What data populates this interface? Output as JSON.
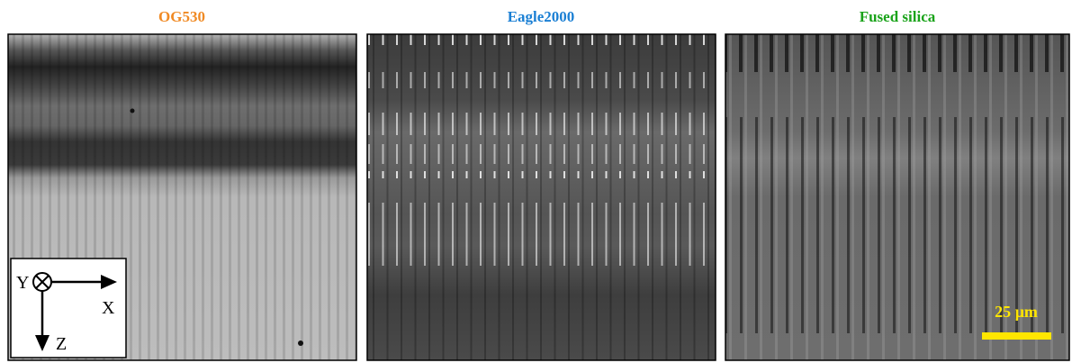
{
  "panels": [
    {
      "title": "OG530"
    },
    {
      "title": "Eagle2000"
    },
    {
      "title": "Fused silica"
    }
  ],
  "axes": {
    "y": "Y",
    "x": "X",
    "z": "Z"
  },
  "scale_bar": "25 µm"
}
